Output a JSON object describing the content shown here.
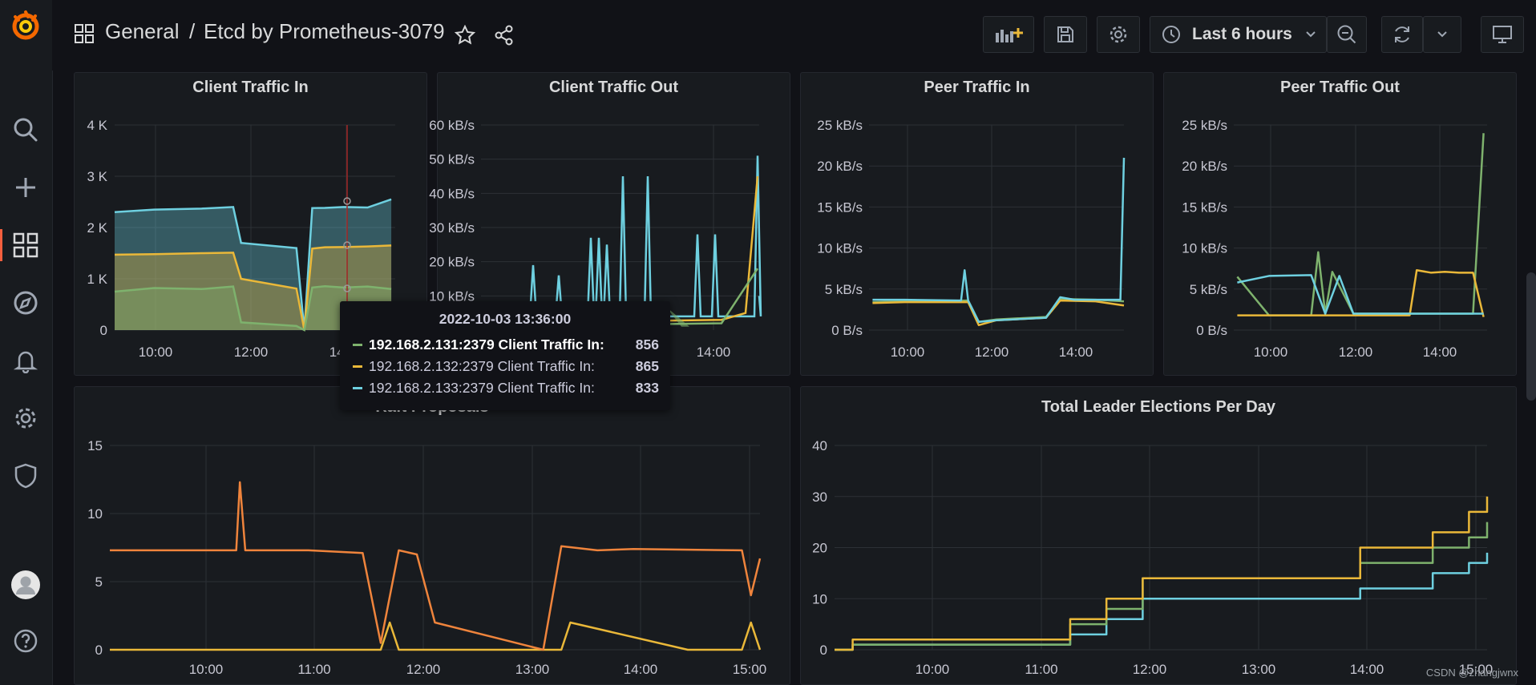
{
  "colors": {
    "green": "#7eb26d",
    "yellow": "#eab839",
    "cyan": "#6ed0e0",
    "orange": "#ef843c",
    "accent": "#f55f3e",
    "grid": "#2c3036"
  },
  "header": {
    "folder": "General",
    "separator": "/",
    "title": "Etcd by Prometheus-3079",
    "time_range": "Last 6 hours"
  },
  "sidebar": {
    "icons": [
      "grafana-logo-icon",
      "search-icon",
      "plus-icon",
      "dashboards-icon",
      "explore-compass-icon",
      "alerting-bell-icon",
      "gear-icon",
      "shield-icon",
      "avatar-icon",
      "help-icon"
    ]
  },
  "panels": {
    "client_in": {
      "title": "Client Traffic In",
      "yticks": [
        "4 K",
        "3 K",
        "2 K",
        "1 K",
        "0"
      ],
      "xticks": [
        "10:00",
        "12:00",
        "14:00"
      ]
    },
    "client_out": {
      "title": "Client Traffic Out",
      "yticks": [
        "60 kB/s",
        "50 kB/s",
        "40 kB/s",
        "30 kB/s",
        "20 kB/s",
        "10 kB/s"
      ],
      "xticks": [
        "14:00"
      ]
    },
    "peer_in": {
      "title": "Peer Traffic In",
      "yticks": [
        "25 kB/s",
        "20 kB/s",
        "15 kB/s",
        "10 kB/s",
        "5 kB/s",
        "0 B/s"
      ],
      "xticks": [
        "10:00",
        "12:00",
        "14:00"
      ]
    },
    "peer_out": {
      "title": "Peer Traffic Out",
      "yticks": [
        "25 kB/s",
        "20 kB/s",
        "15 kB/s",
        "10 kB/s",
        "5 kB/s",
        "0 B/s"
      ],
      "xticks": [
        "10:00",
        "12:00",
        "14:00"
      ]
    },
    "raft": {
      "title": "Raft Proposals",
      "yticks": [
        "15",
        "10",
        "5",
        "0"
      ],
      "xticks": [
        "10:00",
        "11:00",
        "12:00",
        "13:00",
        "14:00",
        "15:00"
      ]
    },
    "elections": {
      "title": "Total Leader Elections Per Day",
      "yticks": [
        "40",
        "30",
        "20",
        "10",
        "0"
      ],
      "xticks": [
        "10:00",
        "11:00",
        "12:00",
        "13:00",
        "14:00",
        "15:00"
      ]
    }
  },
  "tooltip": {
    "time": "2022-10-03 13:36:00",
    "rows": [
      {
        "label": "192.168.2.131:2379 Client Traffic In:",
        "value": "856",
        "color": "#7eb26d",
        "bold": true
      },
      {
        "label": "192.168.2.132:2379 Client Traffic In:",
        "value": "865",
        "color": "#eab839",
        "bold": false
      },
      {
        "label": "192.168.2.133:2379 Client Traffic In:",
        "value": "833",
        "color": "#6ed0e0",
        "bold": false
      }
    ]
  },
  "chart_data": [
    {
      "type": "area",
      "title": "Client Traffic In",
      "x_range": [
        "09:10",
        "15:05"
      ],
      "ylim": [
        0,
        4000
      ],
      "series": [
        {
          "name": "192.168.2.131:2379 Client Traffic In",
          "color": "#7eb26d",
          "x": [
            "09:10",
            "10:00",
            "11:00",
            "11:40",
            "11:50",
            "13:00",
            "13:10",
            "13:20",
            "13:36",
            "14:00",
            "14:30",
            "15:00"
          ],
          "values": [
            750,
            820,
            800,
            850,
            150,
            80,
            0,
            830,
            856,
            830,
            850,
            800
          ]
        },
        {
          "name": "192.168.2.132:2379 Client Traffic In",
          "color": "#eab839",
          "x": [
            "09:10",
            "10:00",
            "11:00",
            "11:40",
            "11:50",
            "13:00",
            "13:10",
            "13:20",
            "13:36",
            "14:00",
            "14:30",
            "15:00"
          ],
          "values": [
            720,
            730,
            750,
            760,
            250,
            60,
            0,
            840,
            865,
            870,
            880,
            900
          ]
        },
        {
          "name": "192.168.2.133:2379 Client Traffic In",
          "color": "#6ed0e0",
          "x": [
            "09:10",
            "10:00",
            "11:00",
            "11:40",
            "11:50",
            "13:00",
            "13:10",
            "13:20",
            "13:36",
            "14:00",
            "14:30",
            "15:00"
          ],
          "values": [
            750,
            800,
            820,
            850,
            150,
            50,
            0,
            830,
            833,
            850,
            840,
            1000
          ]
        }
      ]
    },
    {
      "type": "line",
      "title": "Client Traffic Out",
      "ylim": [
        0,
        60
      ],
      "yunit": "kB/s",
      "series": [
        {
          "name": "cyan",
          "color": "#6ed0e0",
          "values_peaks_kBs": [
            19,
            16,
            27,
            27,
            45,
            9,
            45,
            28,
            28,
            51
          ]
        },
        {
          "name": "yellow",
          "color": "#eab839",
          "values_peaks_kBs": [
            5,
            5,
            4,
            5,
            5,
            4,
            45
          ]
        },
        {
          "name": "green",
          "color": "#7eb26d",
          "values_peaks_kBs": [
            3,
            3,
            3,
            3,
            3,
            18
          ]
        }
      ]
    },
    {
      "type": "line",
      "title": "Peer Traffic In",
      "ylim": [
        0,
        25
      ],
      "yunit": "kB/s",
      "series": [
        {
          "name": "cyan",
          "color": "#6ed0e0",
          "x": [
            "09:15",
            "10:00",
            "11:20",
            "11:25",
            "11:30",
            "11:45",
            "12:10",
            "13:20",
            "13:40",
            "14:00",
            "14:30",
            "15:05",
            "15:10"
          ],
          "values": [
            3.7,
            3.7,
            3.6,
            7.3,
            3.6,
            1,
            1.2,
            1.5,
            4,
            3.7,
            3.7,
            3.7,
            21
          ]
        },
        {
          "name": "yellow",
          "color": "#eab839",
          "x": [
            "09:15",
            "10:00",
            "11:30",
            "11:45",
            "12:10",
            "13:20",
            "13:40",
            "14:30",
            "15:10"
          ],
          "values": [
            3.3,
            3.4,
            3.4,
            0.6,
            1.2,
            1.5,
            3.6,
            3.5,
            3
          ]
        },
        {
          "name": "green",
          "color": "#7eb26d",
          "x": [
            "09:15",
            "10:00",
            "11:30",
            "11:45",
            "12:10",
            "13:20",
            "13:40",
            "14:30",
            "15:10"
          ],
          "values": [
            3.4,
            3.5,
            3.6,
            1,
            1.3,
            1.6,
            3.8,
            3.7,
            3.5
          ]
        }
      ]
    },
    {
      "type": "line",
      "title": "Peer Traffic Out",
      "ylim": [
        0,
        25
      ],
      "yunit": "kB/s",
      "series": [
        {
          "name": "cyan",
          "color": "#6ed0e0",
          "x": [
            "09:15",
            "10:00",
            "11:00",
            "11:20",
            "11:40",
            "12:00",
            "13:20",
            "13:40",
            "14:10",
            "14:40",
            "15:05"
          ],
          "values": [
            5.8,
            6.6,
            6.7,
            2,
            6.6,
            2,
            2,
            2,
            2,
            2,
            2
          ]
        },
        {
          "name": "yellow",
          "color": "#eab839",
          "x": [
            "09:15",
            "10:00",
            "11:00",
            "12:00",
            "13:20",
            "13:30",
            "13:50",
            "14:10",
            "14:30",
            "14:50",
            "15:05"
          ],
          "values": [
            1.8,
            1.8,
            1.8,
            1.8,
            1.8,
            7.3,
            7,
            7.1,
            7,
            7,
            1.6
          ]
        },
        {
          "name": "green",
          "color": "#7eb26d",
          "x": [
            "09:15",
            "10:00",
            "11:00",
            "11:10",
            "11:20",
            "11:30",
            "12:00",
            "13:20",
            "14:00",
            "14:50",
            "15:05"
          ],
          "values": [
            6.5,
            1.8,
            1.8,
            9.5,
            2,
            7.1,
            2,
            2,
            2,
            2,
            24
          ]
        }
      ]
    },
    {
      "type": "line",
      "title": "Raft Proposals",
      "ylim": [
        0,
        15
      ],
      "series": [
        {
          "name": "orange",
          "color": "#ef843c",
          "x": [
            "09:10",
            "10:00",
            "10:20",
            "10:22",
            "10:25",
            "11:00",
            "11:30",
            "11:40",
            "11:50",
            "12:00",
            "12:10",
            "13:10",
            "13:20",
            "13:40",
            "14:00",
            "15:00",
            "15:05",
            "15:10"
          ],
          "values": [
            7.3,
            7.3,
            7.3,
            12.3,
            7.3,
            7.3,
            7.1,
            0.5,
            7.3,
            7,
            2,
            0,
            7.6,
            7.3,
            7.4,
            7.3,
            4,
            6.7
          ]
        },
        {
          "name": "yellow",
          "color": "#eab839",
          "x": [
            "09:10",
            "11:40",
            "11:45",
            "11:50",
            "13:20",
            "13:25",
            "14:30",
            "15:00",
            "15:05",
            "15:10"
          ],
          "values": [
            0,
            0,
            2,
            0,
            0,
            2,
            0,
            0,
            2,
            0
          ]
        }
      ]
    },
    {
      "type": "line",
      "title": "Total Leader Elections Per Day",
      "ylim": [
        0,
        40
      ],
      "series": [
        {
          "name": "yellow",
          "color": "#eab839",
          "x": [
            "09:10",
            "09:20",
            "11:00",
            "11:20",
            "11:40",
            "12:00",
            "13:20",
            "14:00",
            "14:40",
            "15:00",
            "15:10"
          ],
          "values": [
            0,
            2,
            2,
            6,
            10,
            14,
            14,
            20,
            23,
            27,
            30
          ]
        },
        {
          "name": "green",
          "color": "#7eb26d",
          "x": [
            "09:10",
            "09:20",
            "11:00",
            "11:20",
            "11:40",
            "12:00",
            "13:20",
            "14:00",
            "14:40",
            "15:00",
            "15:10"
          ],
          "values": [
            0,
            1,
            1,
            5,
            8,
            14,
            14,
            17,
            20,
            22,
            25
          ]
        },
        {
          "name": "cyan",
          "color": "#6ed0e0",
          "x": [
            "09:10",
            "09:20",
            "11:00",
            "11:20",
            "11:40",
            "12:00",
            "13:20",
            "14:00",
            "14:40",
            "15:00",
            "15:10"
          ],
          "values": [
            0,
            1,
            1,
            3,
            6,
            10,
            10,
            12,
            15,
            17,
            19
          ]
        }
      ]
    }
  ],
  "watermark": "CSDN @zhangjwnx"
}
